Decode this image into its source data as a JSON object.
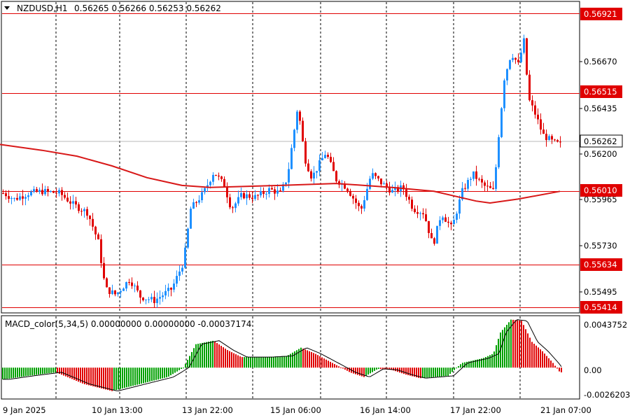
{
  "header": {
    "symbol": "NZDUSD,H1",
    "ohlc": "0.56265 0.56266 0.56253 0.56262"
  },
  "macd": {
    "title": "MACD_color(5,34,5) 0.00000000 0.00000000 -0.00037174",
    "scale": [
      "0.0043752",
      "0.00",
      "-0.0026203"
    ]
  },
  "price_scale": [
    "0.56670",
    "0.56435",
    "0.56200",
    "0.55965",
    "0.55730",
    "0.55495"
  ],
  "current_price": "0.56262",
  "levels": [
    "0.56921",
    "0.56515",
    "0.56010",
    "0.55634",
    "0.55414"
  ],
  "time_axis": [
    "9 Jan 2025",
    "10 Jan 13:00",
    "13 Jan 22:00",
    "15 Jan 06:00",
    "16 Jan 14:00",
    "17 Jan 22:00",
    "21 Jan 07:00"
  ],
  "colors": {
    "bull": "#1e90ff",
    "bear": "#e00000",
    "level": "#e00000",
    "ma": "#d81818",
    "hist_up": "#00a000",
    "hist_down": "#e00000"
  },
  "chart_data": {
    "type": "candlestick",
    "symbol": "NZDUSD",
    "timeframe": "H1",
    "y_range": [
      0.5539,
      0.5698
    ],
    "horizontal_levels": [
      0.56921,
      0.56515,
      0.5601,
      0.55634,
      0.55414
    ],
    "last_price": 0.56262,
    "moving_average": [
      [
        0,
        0.5625
      ],
      [
        60,
        0.5622
      ],
      [
        110,
        0.5619
      ],
      [
        160,
        0.5614
      ],
      [
        210,
        0.5608
      ],
      [
        260,
        0.5604
      ],
      [
        300,
        0.5603
      ],
      [
        400,
        0.5604
      ],
      [
        480,
        0.5605
      ],
      [
        560,
        0.5603
      ],
      [
        620,
        0.5601
      ],
      [
        680,
        0.5596
      ],
      [
        700,
        0.5595
      ],
      [
        740,
        0.5597
      ],
      [
        800,
        0.5601
      ]
    ],
    "price_path": [
      [
        5,
        0.56
      ],
      [
        20,
        0.5597
      ],
      [
        40,
        0.56
      ],
      [
        60,
        0.5601
      ],
      [
        85,
        0.56
      ],
      [
        105,
        0.5594
      ],
      [
        125,
        0.559
      ],
      [
        140,
        0.5575
      ],
      [
        150,
        0.5551
      ],
      [
        165,
        0.5548
      ],
      [
        185,
        0.5556
      ],
      [
        200,
        0.5547
      ],
      [
        220,
        0.5545
      ],
      [
        245,
        0.5551
      ],
      [
        262,
        0.5565
      ],
      [
        272,
        0.5592
      ],
      [
        290,
        0.56
      ],
      [
        305,
        0.5611
      ],
      [
        320,
        0.5604
      ],
      [
        330,
        0.5592
      ],
      [
        345,
        0.5599
      ],
      [
        365,
        0.5598
      ],
      [
        385,
        0.5602
      ],
      [
        400,
        0.56
      ],
      [
        410,
        0.5608
      ],
      [
        425,
        0.5645
      ],
      [
        435,
        0.5618
      ],
      [
        445,
        0.5608
      ],
      [
        465,
        0.5621
      ],
      [
        480,
        0.5607
      ],
      [
        495,
        0.5603
      ],
      [
        515,
        0.5591
      ],
      [
        530,
        0.561
      ],
      [
        545,
        0.5605
      ],
      [
        560,
        0.5601
      ],
      [
        575,
        0.5603
      ],
      [
        590,
        0.5592
      ],
      [
        605,
        0.559
      ],
      [
        618,
        0.5573
      ],
      [
        630,
        0.559
      ],
      [
        645,
        0.5582
      ],
      [
        660,
        0.5601
      ],
      [
        675,
        0.561
      ],
      [
        690,
        0.5604
      ],
      [
        705,
        0.5601
      ],
      [
        712,
        0.563
      ],
      [
        720,
        0.5659
      ],
      [
        730,
        0.5672
      ],
      [
        740,
        0.5666
      ],
      [
        748,
        0.5678
      ],
      [
        755,
        0.5648
      ],
      [
        765,
        0.564
      ],
      [
        775,
        0.563
      ],
      [
        790,
        0.5626
      ],
      [
        800,
        0.5625
      ]
    ],
    "macd_range": [
      -0.0026203,
      0.0043752
    ],
    "macd_histogram": [
      [
        5,
        -0.001
      ],
      [
        40,
        -0.0007
      ],
      [
        80,
        -0.0004
      ],
      [
        120,
        -0.0014
      ],
      [
        160,
        -0.002
      ],
      [
        200,
        -0.0014
      ],
      [
        240,
        -0.0008
      ],
      [
        262,
        0.0
      ],
      [
        280,
        0.002
      ],
      [
        305,
        0.0023
      ],
      [
        325,
        0.0015
      ],
      [
        345,
        0.0009
      ],
      [
        380,
        0.0009
      ],
      [
        410,
        0.001
      ],
      [
        430,
        0.0017
      ],
      [
        450,
        0.0012
      ],
      [
        475,
        0.0004
      ],
      [
        500,
        -0.0004
      ],
      [
        520,
        -0.0008
      ],
      [
        540,
        -0.0001
      ],
      [
        560,
        -0.0002
      ],
      [
        580,
        -0.0006
      ],
      [
        600,
        -0.0009
      ],
      [
        620,
        -0.0008
      ],
      [
        640,
        -0.0007
      ],
      [
        660,
        0.0004
      ],
      [
        690,
        0.0008
      ],
      [
        705,
        0.0012
      ],
      [
        715,
        0.003
      ],
      [
        730,
        0.0041
      ],
      [
        745,
        0.004
      ],
      [
        760,
        0.0022
      ],
      [
        775,
        0.0014
      ],
      [
        790,
        0.0004
      ],
      [
        800,
        -0.0004
      ]
    ]
  }
}
